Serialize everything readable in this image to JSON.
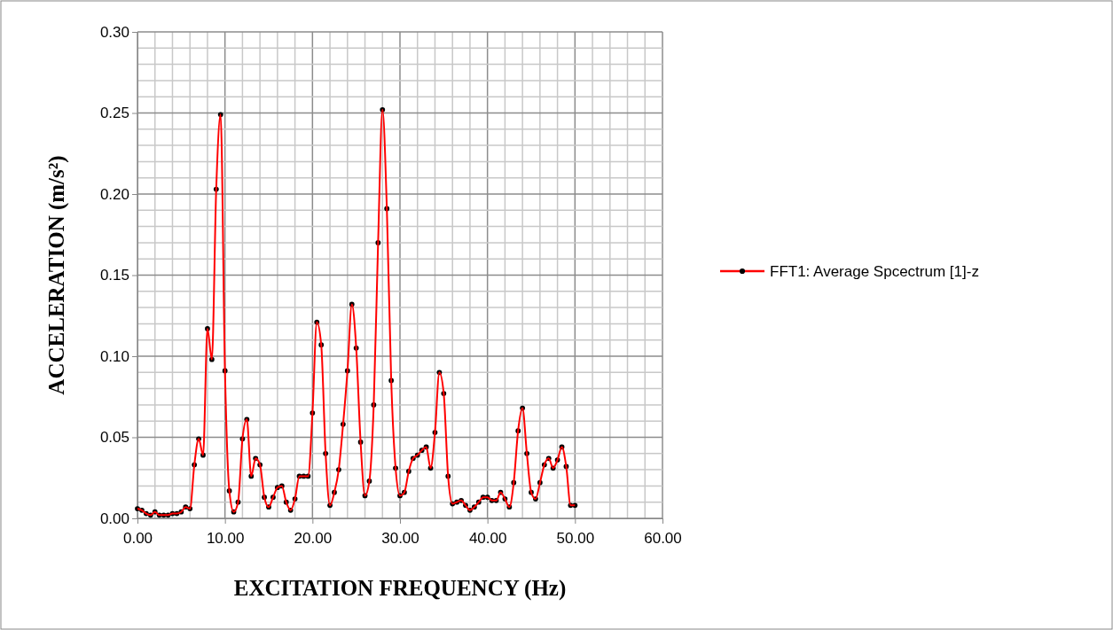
{
  "chart_data": {
    "type": "line",
    "xlabel": "EXCITATION FREQUENCY (Hz)",
    "ylabel": "ACCELERATION (m/s²)",
    "x": [
      0,
      0.5,
      1,
      1.5,
      2,
      2.5,
      3,
      3.5,
      4,
      4.5,
      5,
      5.5,
      6,
      6.5,
      7,
      7.5,
      8,
      8.5,
      9,
      9.5,
      10,
      10.5,
      11,
      11.5,
      12,
      12.5,
      13,
      13.5,
      14,
      14.5,
      15,
      15.5,
      16,
      16.5,
      17,
      17.5,
      18,
      18.5,
      19,
      19.5,
      20,
      20.5,
      21,
      21.5,
      22,
      22.5,
      23,
      23.5,
      24,
      24.5,
      25,
      25.5,
      26,
      26.5,
      27,
      27.5,
      28,
      28.5,
      29,
      29.5,
      30,
      30.5,
      31,
      31.5,
      32,
      32.5,
      33,
      33.5,
      34,
      34.5,
      35,
      35.5,
      36,
      36.5,
      37,
      37.5,
      38,
      38.5,
      39,
      39.5,
      40,
      40.5,
      41,
      41.5,
      42,
      42.5,
      43,
      43.5,
      44,
      44.5,
      45,
      45.5,
      46,
      46.5,
      47,
      47.5,
      48,
      48.5,
      49,
      49.5,
      50
    ],
    "series": [
      {
        "name": "FFT1: Average Spcectrum [1]-z",
        "color": "#ff0000",
        "values": [
          0.006,
          0.005,
          0.003,
          0.002,
          0.004,
          0.002,
          0.002,
          0.002,
          0.003,
          0.003,
          0.004,
          0.007,
          0.006,
          0.033,
          0.049,
          0.039,
          0.117,
          0.098,
          0.203,
          0.249,
          0.091,
          0.017,
          0.004,
          0.01,
          0.049,
          0.061,
          0.026,
          0.037,
          0.033,
          0.013,
          0.007,
          0.013,
          0.019,
          0.02,
          0.01,
          0.005,
          0.012,
          0.026,
          0.026,
          0.026,
          0.065,
          0.121,
          0.107,
          0.04,
          0.008,
          0.016,
          0.03,
          0.058,
          0.091,
          0.132,
          0.105,
          0.047,
          0.014,
          0.023,
          0.07,
          0.17,
          0.252,
          0.191,
          0.085,
          0.031,
          0.014,
          0.016,
          0.029,
          0.037,
          0.039,
          0.042,
          0.044,
          0.031,
          0.053,
          0.09,
          0.077,
          0.026,
          0.009,
          0.01,
          0.011,
          0.008,
          0.005,
          0.007,
          0.01,
          0.013,
          0.013,
          0.011,
          0.011,
          0.016,
          0.012,
          0.007,
          0.022,
          0.054,
          0.068,
          0.04,
          0.016,
          0.012,
          0.022,
          0.033,
          0.037,
          0.031,
          0.036,
          0.044,
          0.032,
          0.008,
          0.008
        ]
      }
    ],
    "xlim": [
      0,
      60
    ],
    "xticks": [
      {
        "value": 0,
        "label": "0.00"
      },
      {
        "value": 10,
        "label": "10.00"
      },
      {
        "value": 20,
        "label": "20.00"
      },
      {
        "value": 30,
        "label": "30.00"
      },
      {
        "value": 40,
        "label": "40.00"
      },
      {
        "value": 50,
        "label": "50.00"
      },
      {
        "value": 60,
        "label": "60.00"
      }
    ],
    "ylim": [
      0,
      0.3
    ],
    "yticks": [
      {
        "value": 0,
        "label": "0.00"
      },
      {
        "value": 0.05,
        "label": "0.05"
      },
      {
        "value": 0.1,
        "label": "0.10"
      },
      {
        "value": 0.15,
        "label": "0.15"
      },
      {
        "value": 0.2,
        "label": "0.20"
      },
      {
        "value": 0.25,
        "label": "0.25"
      },
      {
        "value": 0.3,
        "label": "0.30"
      }
    ],
    "grid": true,
    "legend": "right",
    "marker": "circle",
    "line_style": "solid"
  }
}
